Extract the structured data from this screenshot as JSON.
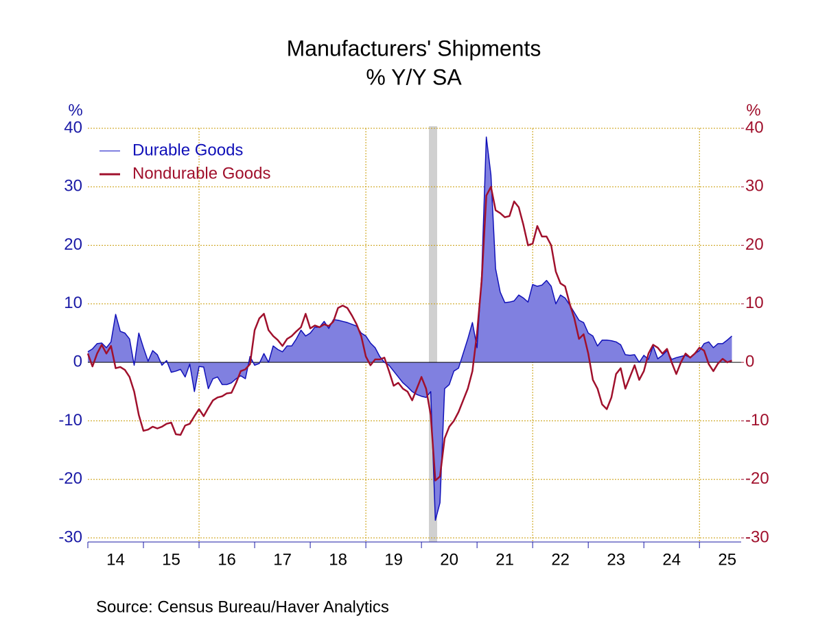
{
  "chart_data": {
    "type": "line",
    "title": "Manufacturers' Shipments",
    "subtitle": "% Y/Y   SA",
    "y_label": "%",
    "y2_label": "%",
    "source": "Source: Census Bureau/Haver Analytics",
    "categories": [
      null,
      null,
      null,
      null,
      null,
      null,
      "14",
      null,
      null,
      null,
      null,
      null,
      null,
      null,
      null,
      null,
      null,
      null,
      "15",
      null,
      null,
      null,
      null,
      null,
      null,
      null,
      null,
      null,
      null,
      null,
      "16",
      null,
      null,
      null,
      null,
      null,
      null,
      null,
      null,
      null,
      null,
      null,
      "17",
      null,
      null,
      null,
      null,
      null,
      null,
      null,
      null,
      null,
      null,
      null,
      "18",
      null,
      null,
      null,
      null,
      null,
      null,
      null,
      null,
      null,
      null,
      null,
      "19",
      null,
      null,
      null,
      null,
      null,
      null,
      null,
      null,
      null,
      null,
      null,
      "20",
      null,
      null,
      null,
      null,
      null,
      null,
      null,
      null,
      null,
      null,
      null,
      "21",
      null,
      null,
      null,
      null,
      null,
      null,
      null,
      null,
      null,
      null,
      null,
      "22",
      null,
      null,
      null,
      null,
      null,
      null,
      null,
      null,
      null,
      null,
      null,
      "23",
      null,
      null,
      null,
      null,
      null,
      null,
      null,
      null,
      null,
      null,
      null,
      "24",
      null,
      null,
      null,
      null,
      null,
      null,
      null,
      null,
      null,
      null,
      null,
      "25",
      null
    ],
    "series": [
      {
        "name": "Durable Goods",
        "color": "#1010b8",
        "fill": "#8080e0",
        "axis": "y",
        "values": [
          1.8,
          2.3,
          3.2,
          3.3,
          2.5,
          3.5,
          8.2,
          5.3,
          5.0,
          4.0,
          -0.5,
          5.0,
          2.5,
          0.2,
          2.0,
          1.3,
          -0.5,
          0.3,
          -1.7,
          -1.5,
          -1.2,
          -2.5,
          -0.3,
          -5.0,
          -0.7,
          -0.8,
          -4.5,
          -2.8,
          -2.5,
          -3.8,
          -3.8,
          -3.5,
          -2.8,
          -2.3,
          -2.8,
          1.0,
          -0.5,
          -0.2,
          1.5,
          0.0,
          2.8,
          2.2,
          1.8,
          2.8,
          2.8,
          4.0,
          5.5,
          4.5,
          5.0,
          6.0,
          6.0,
          7.0,
          5.8,
          7.3,
          7.2,
          7.0,
          6.8,
          6.5,
          6.2,
          5.0,
          4.5,
          3.3,
          2.5,
          1.0,
          0.0,
          -0.5,
          -1.5,
          -2.5,
          -3.5,
          -4.2,
          -5.0,
          -5.5,
          -5.8,
          -6.0,
          -5.0,
          -27.0,
          -24.0,
          -4.5,
          -3.8,
          -1.5,
          -1.0,
          1.5,
          4.0,
          6.8,
          2.5,
          15.0,
          38.5,
          32.0,
          16.0,
          12.0,
          10.2,
          10.3,
          10.5,
          11.5,
          11.0,
          10.3,
          13.3,
          13.0,
          13.2,
          14.0,
          13.0,
          10.0,
          11.5,
          11.0,
          9.8,
          8.5,
          7.2,
          6.8,
          5.0,
          4.5,
          2.8,
          3.8,
          3.8,
          3.7,
          3.5,
          3.0,
          1.3,
          1.2,
          1.3,
          0.0,
          1.2,
          0.5,
          2.8,
          0.6,
          1.2,
          2.0,
          0.5,
          0.8,
          1.0,
          1.2,
          0.8,
          1.5,
          2.0,
          3.2,
          3.5,
          2.5,
          3.2,
          3.2,
          3.8,
          4.5
        ]
      },
      {
        "name": "Nondurable Goods",
        "color": "#a0102c",
        "axis": "y2",
        "values": [
          1.5,
          -0.7,
          1.5,
          3.0,
          1.5,
          2.8,
          -1.0,
          -0.8,
          -1.3,
          -2.5,
          -5.0,
          -9.0,
          -11.7,
          -11.5,
          -11.0,
          -11.3,
          -11.0,
          -10.5,
          -10.3,
          -12.3,
          -12.4,
          -10.8,
          -10.5,
          -9.2,
          -8.0,
          -9.2,
          -7.8,
          -6.5,
          -6.0,
          -5.8,
          -5.3,
          -5.2,
          -3.5,
          -1.5,
          -1.2,
          -0.3,
          5.5,
          7.5,
          8.3,
          5.5,
          4.5,
          3.8,
          2.8,
          4.0,
          4.5,
          5.3,
          6.0,
          8.3,
          5.8,
          6.3,
          6.0,
          6.5,
          6.2,
          7.0,
          9.3,
          9.7,
          9.3,
          8.0,
          6.5,
          4.5,
          1.0,
          -0.5,
          0.5,
          0.5,
          0.8,
          -1.5,
          -4.0,
          -3.5,
          -4.5,
          -5.0,
          -6.5,
          -4.5,
          -2.5,
          -4.5,
          -9.0,
          -20.2,
          -19.5,
          -13.0,
          -11.0,
          -10.0,
          -8.5,
          -6.5,
          -4.5,
          -1.5,
          5.0,
          14.0,
          28.5,
          30.0,
          26.0,
          25.5,
          24.8,
          25.0,
          27.5,
          26.5,
          23.5,
          20.0,
          20.3,
          23.3,
          21.5,
          21.5,
          20.0,
          15.5,
          13.5,
          13.0,
          10.0,
          7.5,
          4.0,
          4.8,
          1.5,
          -3.0,
          -4.5,
          -7.2,
          -8.0,
          -6.0,
          -2.0,
          -1.0,
          -4.5,
          -2.5,
          -0.5,
          -3.0,
          -1.5,
          1.5,
          3.0,
          2.5,
          1.5,
          2.3,
          0.0,
          -2.0,
          0.0,
          1.5,
          0.8,
          1.5,
          2.5,
          2.0,
          -0.3,
          -1.5,
          -0.2,
          0.6,
          0.0,
          0.3
        ]
      }
    ],
    "ylim": [
      -30,
      40
    ],
    "yticks": [
      -30,
      -20,
      -10,
      0,
      10,
      20,
      30,
      40
    ],
    "y2lim": [
      -30,
      40
    ],
    "y2ticks": [
      -30,
      -20,
      -10,
      0,
      10,
      20,
      30,
      40
    ],
    "grid": true,
    "legend": "upper left"
  }
}
